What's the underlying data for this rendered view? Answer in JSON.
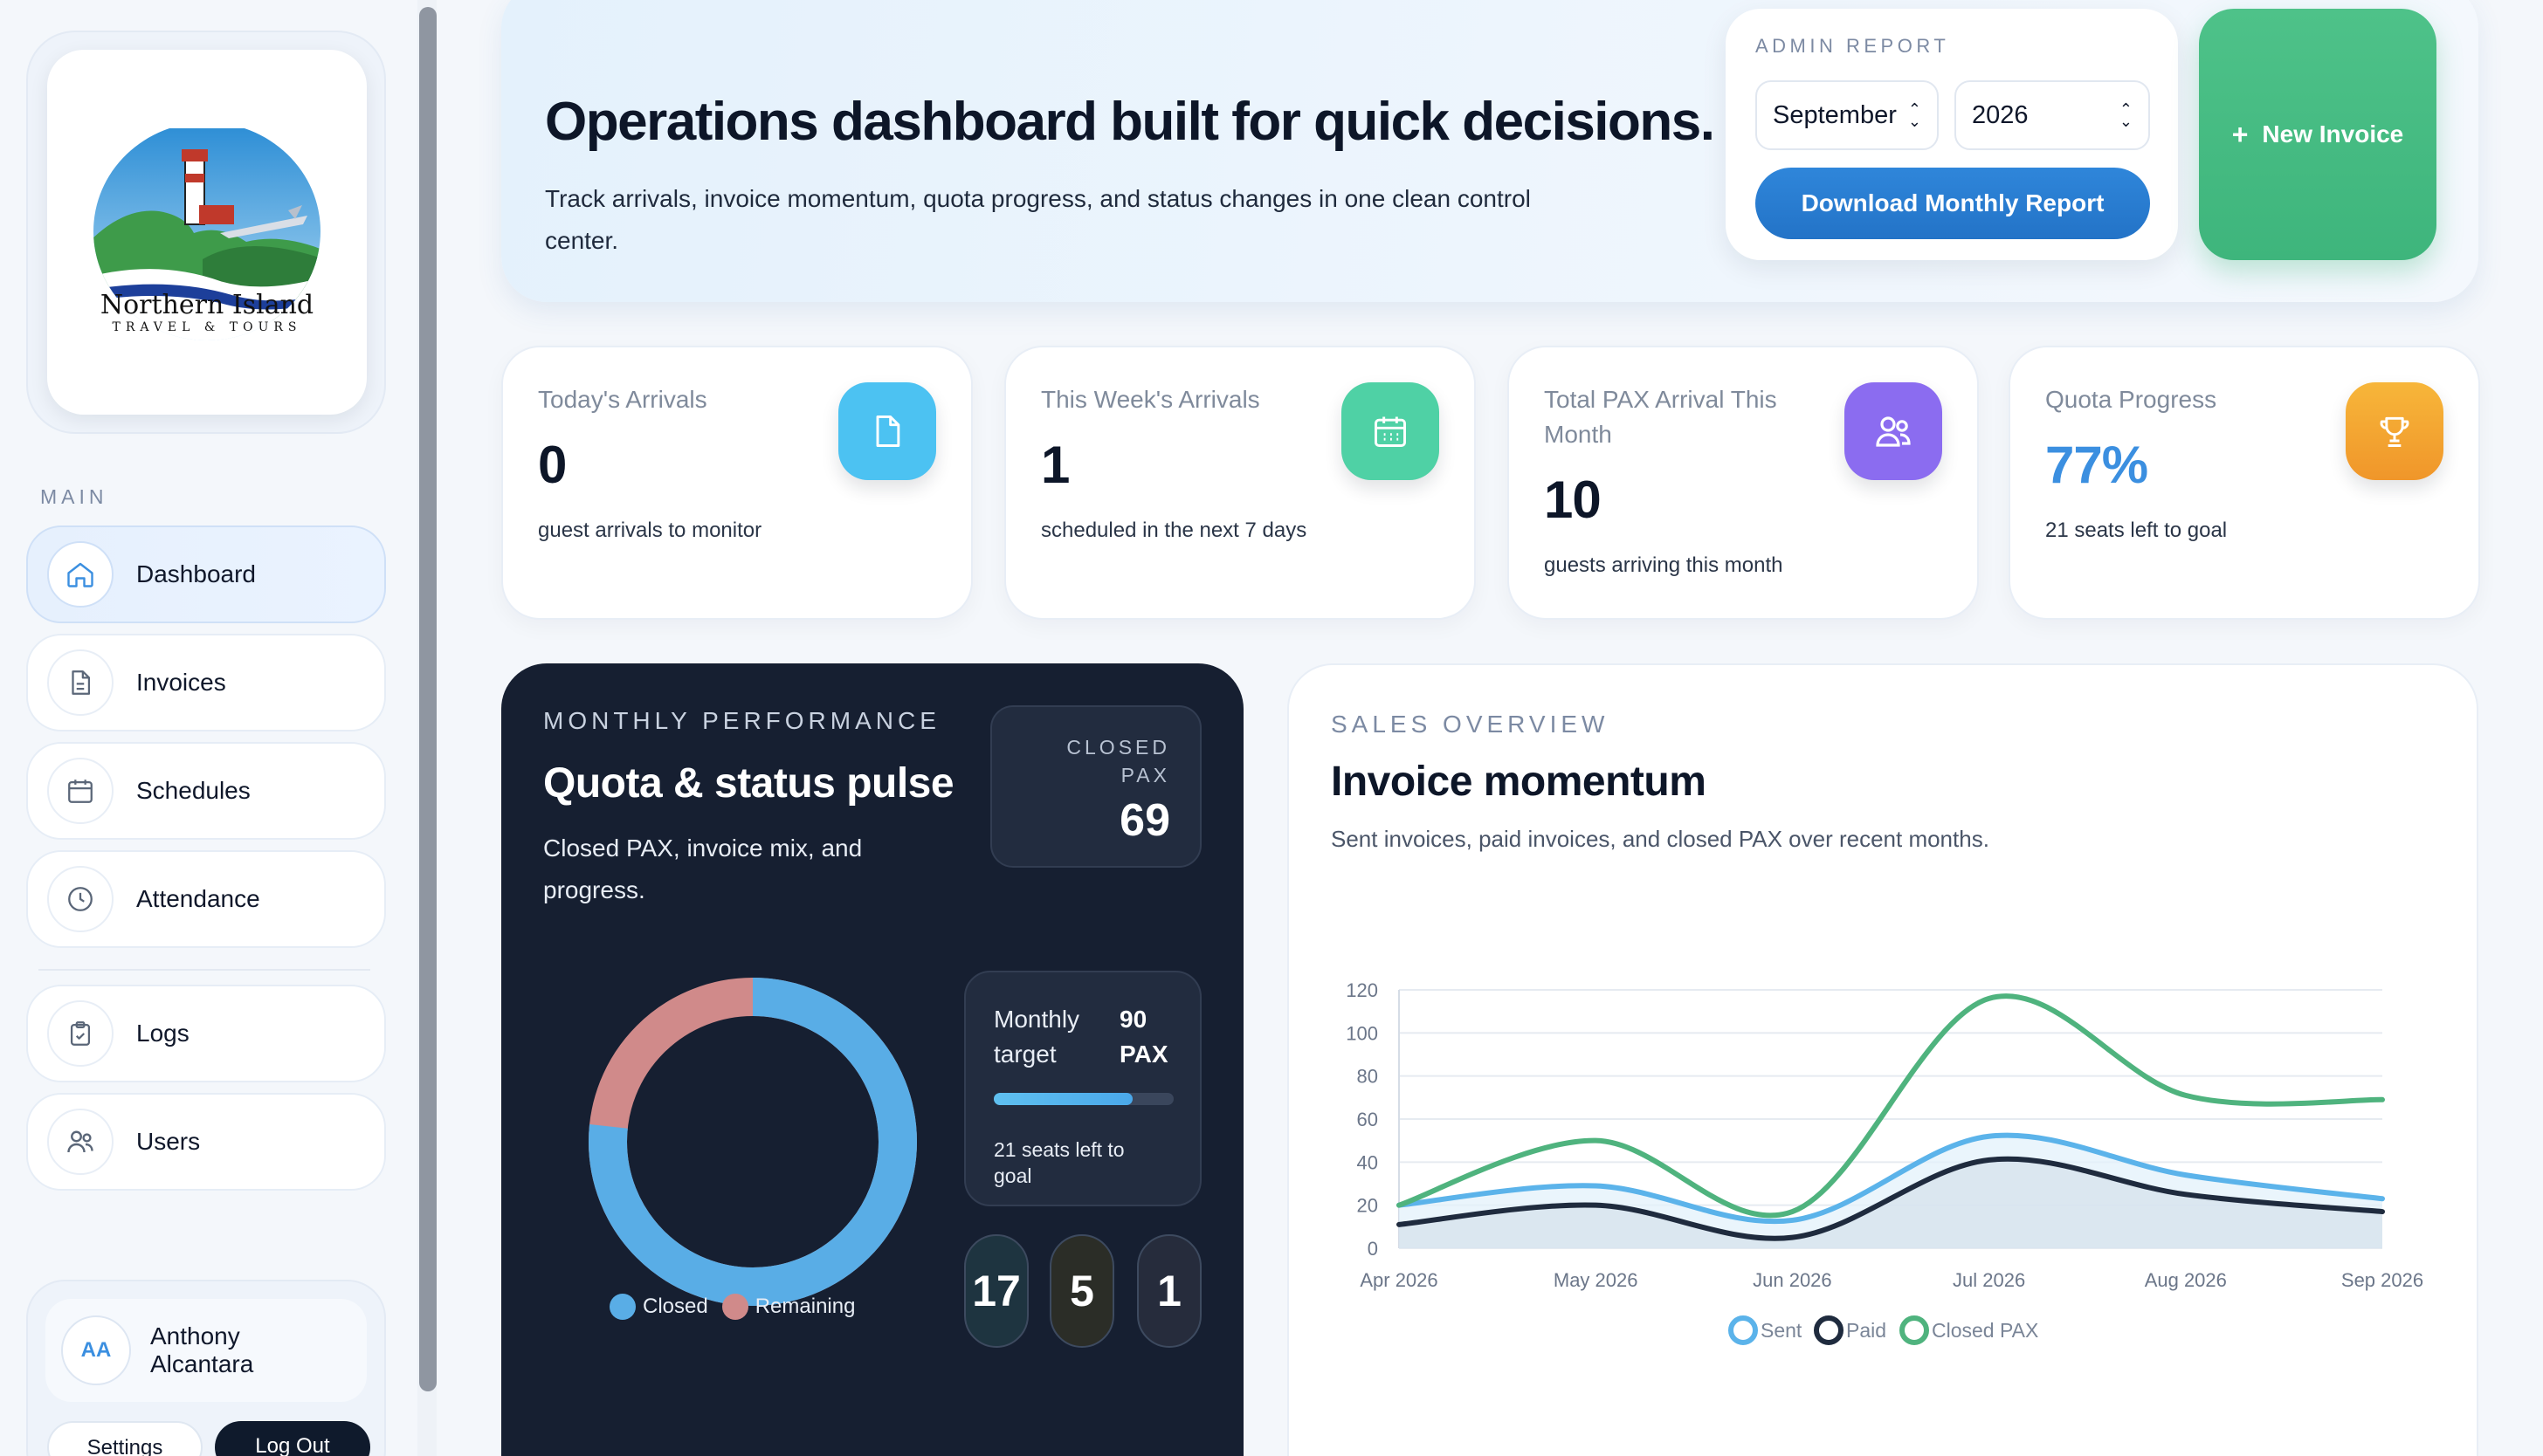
{
  "sidebar": {
    "logo_text": "Northern Island",
    "logo_subtext": "TRAVEL & TOURS",
    "section_label": "MAIN",
    "items": [
      {
        "label": "Dashboard",
        "icon": "home-icon"
      },
      {
        "label": "Invoices",
        "icon": "document-icon"
      },
      {
        "label": "Schedules",
        "icon": "calendar-icon"
      },
      {
        "label": "Attendance",
        "icon": "clock-icon"
      },
      {
        "label": "Logs",
        "icon": "clipboard-icon"
      },
      {
        "label": "Users",
        "icon": "users-icon"
      }
    ],
    "user": {
      "initials": "AA",
      "name": "Anthony Alcantara",
      "settings_label": "Settings",
      "logout_label": "Log Out"
    }
  },
  "hero": {
    "title": "Operations dashboard built for quick decisions.",
    "subtitle": "Track arrivals, invoice momentum, quota progress, and status changes in one clean control center."
  },
  "admin_report": {
    "label": "ADMIN REPORT",
    "month": "September",
    "year": "2026",
    "download_label": "Download Monthly Report",
    "new_invoice_label": "New Invoice"
  },
  "stats": [
    {
      "title": "Today's Arrivals",
      "value": "0",
      "desc": "guest arrivals to monitor",
      "icon": "document-icon",
      "color": "#4cc2f2"
    },
    {
      "title": "This Week's Arrivals",
      "value": "1",
      "desc": "scheduled in the next 7 days",
      "icon": "calendar-icon",
      "color": "#4fd1a5"
    },
    {
      "title": "Total PAX Arrival This Month",
      "value": "10",
      "desc": "guests arriving this month",
      "icon": "users-icon",
      "color": "#8b6cf0"
    },
    {
      "title": "Quota Progress",
      "value": "77%",
      "desc": "21 seats left to goal",
      "icon": "trophy-icon",
      "color": "#f5a623"
    }
  ],
  "performance": {
    "label": "MONTHLY PERFORMANCE",
    "title": "Quota & status pulse",
    "subtitle": "Closed PAX, invoice mix, and progress.",
    "closed_label": "CLOSED PAX",
    "closed_value": "69",
    "target_label": "Monthly target",
    "target_value": "90 PAX",
    "target_progress": 0.77,
    "target_note": "21 seats left to goal",
    "pills": [
      "17",
      "5",
      "1"
    ],
    "donut": {
      "closed": 69,
      "remaining": 21,
      "closed_color": "#59ade6",
      "remaining_color": "#d08a8a",
      "legend": [
        "Closed",
        "Remaining"
      ]
    }
  },
  "sales": {
    "label": "SALES OVERVIEW",
    "title": "Invoice momentum",
    "subtitle": "Sent invoices, paid invoices, and closed PAX over recent months."
  },
  "chart_data": {
    "type": "line",
    "x": [
      "Apr 2026",
      "May 2026",
      "Jun 2026",
      "Jul 2026",
      "Aug 2026",
      "Sep 2026"
    ],
    "ylim": [
      0,
      120
    ],
    "yticks": [
      0,
      20,
      40,
      60,
      80,
      100,
      120
    ],
    "grid": true,
    "legend_position": "bottom",
    "series": [
      {
        "name": "Sent",
        "values": [
          20,
          29,
          13,
          52,
          34,
          23
        ],
        "color": "#5bb3ea",
        "fill": "#e3f1fb"
      },
      {
        "name": "Paid",
        "values": [
          11,
          20,
          5,
          41,
          25,
          17
        ],
        "color": "#1f2b3e",
        "fill": "#d5e1ec"
      },
      {
        "name": "Closed PAX",
        "values": [
          20,
          50,
          17,
          116,
          71,
          69
        ],
        "color": "#4fb37e",
        "fill": null
      }
    ]
  }
}
